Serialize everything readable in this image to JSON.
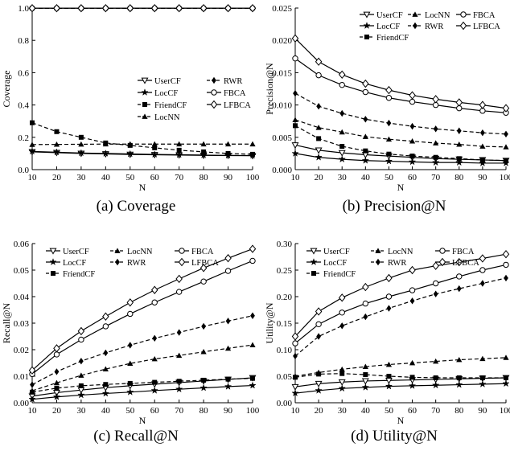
{
  "chart_data": [
    {
      "type": "line",
      "caption": "(a) Coverage",
      "xlabel": "N",
      "ylabel": "Coverage",
      "xlim": [
        10,
        100
      ],
      "ylim": [
        0,
        1.0
      ],
      "x": [
        10,
        20,
        30,
        40,
        50,
        60,
        70,
        80,
        90,
        100
      ],
      "xticks": [
        "10",
        "20",
        "30",
        "40",
        "50",
        "60",
        "70",
        "80",
        "90",
        "100"
      ],
      "yticks": [
        0,
        0.2,
        0.4,
        0.6,
        0.8,
        1.0
      ],
      "yticklabels": [
        "0.0",
        "0.2",
        "0.4",
        "0.6",
        "0.8",
        "1.0"
      ],
      "legend_position": "lower-right",
      "legend_cols": 2,
      "legend_order": [
        "UserCF",
        "RWR",
        "LocCF",
        "FBCA",
        "FriendCF",
        "LFBCA",
        "LocNN"
      ],
      "series": [
        {
          "name": "UserCF",
          "dash": "solid",
          "marker": "tri-down-open",
          "values": [
            0.11,
            0.105,
            0.1,
            0.097,
            0.094,
            0.092,
            0.09,
            0.088,
            0.087,
            0.086
          ]
        },
        {
          "name": "LocCF",
          "dash": "solid",
          "marker": "star",
          "values": [
            0.113,
            0.108,
            0.103,
            0.1,
            0.097,
            0.094,
            0.092,
            0.09,
            0.088,
            0.087
          ]
        },
        {
          "name": "FriendCF",
          "dash": "dashed",
          "marker": "square",
          "values": [
            0.29,
            0.235,
            0.2,
            0.165,
            0.15,
            0.135,
            0.12,
            0.11,
            0.1,
            0.095
          ]
        },
        {
          "name": "LocNN",
          "dash": "dashed",
          "marker": "triangle",
          "values": [
            0.155,
            0.156,
            0.157,
            0.158,
            0.158,
            0.158,
            0.158,
            0.158,
            0.158,
            0.158
          ]
        },
        {
          "name": "RWR",
          "dash": "dashed",
          "marker": "diamond-filled",
          "values": [
            0.998,
            0.998,
            0.998,
            0.998,
            0.998,
            0.998,
            0.998,
            0.998,
            0.998,
            0.998
          ]
        },
        {
          "name": "FBCA",
          "dash": "solid",
          "marker": "circle-open",
          "values": [
            0.999,
            0.999,
            0.999,
            0.999,
            0.999,
            0.999,
            0.999,
            0.999,
            0.999,
            0.999
          ]
        },
        {
          "name": "LFBCA",
          "dash": "solid",
          "marker": "diamond-open",
          "values": [
            0.999,
            0.999,
            0.999,
            0.999,
            0.999,
            0.999,
            0.999,
            0.999,
            0.999,
            0.999
          ]
        }
      ]
    },
    {
      "type": "line",
      "caption": "(b) Precision@N",
      "xlabel": "N",
      "ylabel": "Precision@N",
      "xlim": [
        10,
        100
      ],
      "ylim": [
        0,
        0.025
      ],
      "x": [
        10,
        20,
        30,
        40,
        50,
        60,
        70,
        80,
        90,
        100
      ],
      "xticks": [
        "10",
        "20",
        "30",
        "40",
        "50",
        "60",
        "70",
        "80",
        "90",
        "100"
      ],
      "yticks": [
        0,
        0.005,
        0.01,
        0.015,
        0.02,
        0.025
      ],
      "yticklabels": [
        "0.000",
        "0.005",
        "0.010",
        "0.015",
        "0.020",
        "0.025"
      ],
      "legend_position": "top-right",
      "legend_cols": 3,
      "legend_order": [
        "UserCF",
        "LocNN",
        "FBCA",
        "LocCF",
        "RWR",
        "LFBCA",
        "FriendCF"
      ],
      "series": [
        {
          "name": "UserCF",
          "dash": "solid",
          "marker": "tri-down-open",
          "values": [
            0.0038,
            0.003,
            0.0026,
            0.0023,
            0.0021,
            0.0019,
            0.0017,
            0.0016,
            0.0015,
            0.0014
          ]
        },
        {
          "name": "LocCF",
          "dash": "solid",
          "marker": "star",
          "values": [
            0.0025,
            0.0019,
            0.0016,
            0.0014,
            0.0013,
            0.0012,
            0.0011,
            0.0011,
            0.001,
            0.001
          ]
        },
        {
          "name": "FriendCF",
          "dash": "dashed",
          "marker": "square",
          "values": [
            0.0068,
            0.0048,
            0.0036,
            0.0029,
            0.0024,
            0.0021,
            0.0019,
            0.0017,
            0.0015,
            0.0014
          ]
        },
        {
          "name": "LocNN",
          "dash": "dashed",
          "marker": "triangle",
          "values": [
            0.0077,
            0.0065,
            0.0058,
            0.0051,
            0.0047,
            0.0044,
            0.0041,
            0.0039,
            0.0036,
            0.0035
          ]
        },
        {
          "name": "RWR",
          "dash": "dashed",
          "marker": "diamond-filled",
          "values": [
            0.0118,
            0.0098,
            0.0087,
            0.0078,
            0.0072,
            0.0067,
            0.0063,
            0.006,
            0.0057,
            0.0055
          ]
        },
        {
          "name": "FBCA",
          "dash": "solid",
          "marker": "circle-open",
          "values": [
            0.0172,
            0.0146,
            0.0131,
            0.012,
            0.0111,
            0.0105,
            0.01,
            0.0095,
            0.0091,
            0.0088
          ]
        },
        {
          "name": "LFBCA",
          "dash": "solid",
          "marker": "diamond-open",
          "values": [
            0.0203,
            0.0167,
            0.0147,
            0.0133,
            0.0123,
            0.0115,
            0.0109,
            0.0104,
            0.01,
            0.0095
          ]
        }
      ]
    },
    {
      "type": "line",
      "caption": "(c) Recall@N",
      "xlabel": "N",
      "ylabel": "Recall@N",
      "xlim": [
        10,
        100
      ],
      "ylim": [
        0,
        0.06
      ],
      "x": [
        10,
        20,
        30,
        40,
        50,
        60,
        70,
        80,
        90,
        100
      ],
      "xticks": [
        "10",
        "20",
        "30",
        "40",
        "50",
        "60",
        "70",
        "80",
        "90",
        "100"
      ],
      "yticks": [
        0,
        0.01,
        0.02,
        0.03,
        0.04,
        0.05,
        0.06
      ],
      "yticklabels": [
        "0.00",
        "0.01",
        "0.02",
        "0.03",
        "0.04",
        "0.05",
        "0.06"
      ],
      "legend_position": "top-left",
      "legend_cols": 3,
      "legend_order": [
        "UserCF",
        "LocNN",
        "FBCA",
        "LocCF",
        "RWR",
        "LFBCA",
        "FriendCF"
      ],
      "series": [
        {
          "name": "UserCF",
          "dash": "solid",
          "marker": "tri-down-open",
          "values": [
            0.0025,
            0.0038,
            0.0048,
            0.0057,
            0.0064,
            0.007,
            0.0076,
            0.0082,
            0.0088,
            0.0094
          ]
        },
        {
          "name": "LocCF",
          "dash": "solid",
          "marker": "star",
          "values": [
            0.0013,
            0.0022,
            0.0029,
            0.0035,
            0.004,
            0.0046,
            0.0051,
            0.0056,
            0.0061,
            0.0065
          ]
        },
        {
          "name": "FriendCF",
          "dash": "dashed",
          "marker": "square",
          "values": [
            0.004,
            0.0055,
            0.0064,
            0.0069,
            0.0073,
            0.0077,
            0.0081,
            0.0085,
            0.0089,
            0.0092
          ]
        },
        {
          "name": "LocNN",
          "dash": "dashed",
          "marker": "triangle",
          "values": [
            0.0045,
            0.0075,
            0.0103,
            0.0127,
            0.0148,
            0.0165,
            0.0178,
            0.0192,
            0.0205,
            0.0218
          ]
        },
        {
          "name": "RWR",
          "dash": "dashed",
          "marker": "diamond-filled",
          "values": [
            0.0068,
            0.0117,
            0.0157,
            0.0188,
            0.0217,
            0.0243,
            0.0265,
            0.0288,
            0.0308,
            0.0328
          ]
        },
        {
          "name": "FBCA",
          "dash": "solid",
          "marker": "circle-open",
          "values": [
            0.0108,
            0.0182,
            0.0238,
            0.0288,
            0.0335,
            0.0378,
            0.0418,
            0.0457,
            0.0497,
            0.0535
          ]
        },
        {
          "name": "LFBCA",
          "dash": "solid",
          "marker": "diamond-open",
          "values": [
            0.0122,
            0.0205,
            0.027,
            0.0325,
            0.0378,
            0.0425,
            0.0467,
            0.0508,
            0.0545,
            0.058
          ]
        }
      ]
    },
    {
      "type": "line",
      "caption": "(d) Utility@N",
      "xlabel": "N",
      "ylabel": "Utility@N",
      "xlim": [
        10,
        100
      ],
      "ylim": [
        0,
        0.3
      ],
      "x": [
        10,
        20,
        30,
        40,
        50,
        60,
        70,
        80,
        90,
        100
      ],
      "xticks": [
        "10",
        "20",
        "30",
        "40",
        "50",
        "60",
        "70",
        "80",
        "90",
        "100"
      ],
      "yticks": [
        0,
        0.05,
        0.1,
        0.15,
        0.2,
        0.25,
        0.3
      ],
      "yticklabels": [
        "0.00",
        "0.05",
        "0.10",
        "0.15",
        "0.20",
        "0.25",
        "0.30"
      ],
      "legend_position": "top-left",
      "legend_cols": 3,
      "legend_order": [
        "UserCF",
        "LocNN",
        "FBCA",
        "LocCF",
        "RWR",
        "LFBCA",
        "FriendCF"
      ],
      "series": [
        {
          "name": "UserCF",
          "dash": "solid",
          "marker": "tri-down-open",
          "values": [
            0.03,
            0.036,
            0.039,
            0.041,
            0.042,
            0.043,
            0.044,
            0.045,
            0.046,
            0.047
          ]
        },
        {
          "name": "LocCF",
          "dash": "solid",
          "marker": "star",
          "values": [
            0.018,
            0.023,
            0.027,
            0.029,
            0.031,
            0.032,
            0.033,
            0.034,
            0.035,
            0.036
          ]
        },
        {
          "name": "FriendCF",
          "dash": "dashed",
          "marker": "square",
          "values": [
            0.048,
            0.054,
            0.055,
            0.053,
            0.05,
            0.048,
            0.047,
            0.047,
            0.047,
            0.047
          ]
        },
        {
          "name": "LocNN",
          "dash": "dashed",
          "marker": "triangle",
          "values": [
            0.05,
            0.057,
            0.063,
            0.068,
            0.072,
            0.075,
            0.078,
            0.081,
            0.083,
            0.085
          ]
        },
        {
          "name": "RWR",
          "dash": "dashed",
          "marker": "diamond-filled",
          "values": [
            0.088,
            0.125,
            0.145,
            0.162,
            0.178,
            0.192,
            0.205,
            0.215,
            0.225,
            0.235
          ]
        },
        {
          "name": "FBCA",
          "dash": "solid",
          "marker": "circle-open",
          "values": [
            0.112,
            0.148,
            0.17,
            0.187,
            0.2,
            0.212,
            0.225,
            0.238,
            0.25,
            0.26
          ]
        },
        {
          "name": "LFBCA",
          "dash": "solid",
          "marker": "diamond-open",
          "values": [
            0.125,
            0.172,
            0.198,
            0.218,
            0.235,
            0.25,
            0.258,
            0.265,
            0.272,
            0.28
          ]
        }
      ]
    }
  ]
}
